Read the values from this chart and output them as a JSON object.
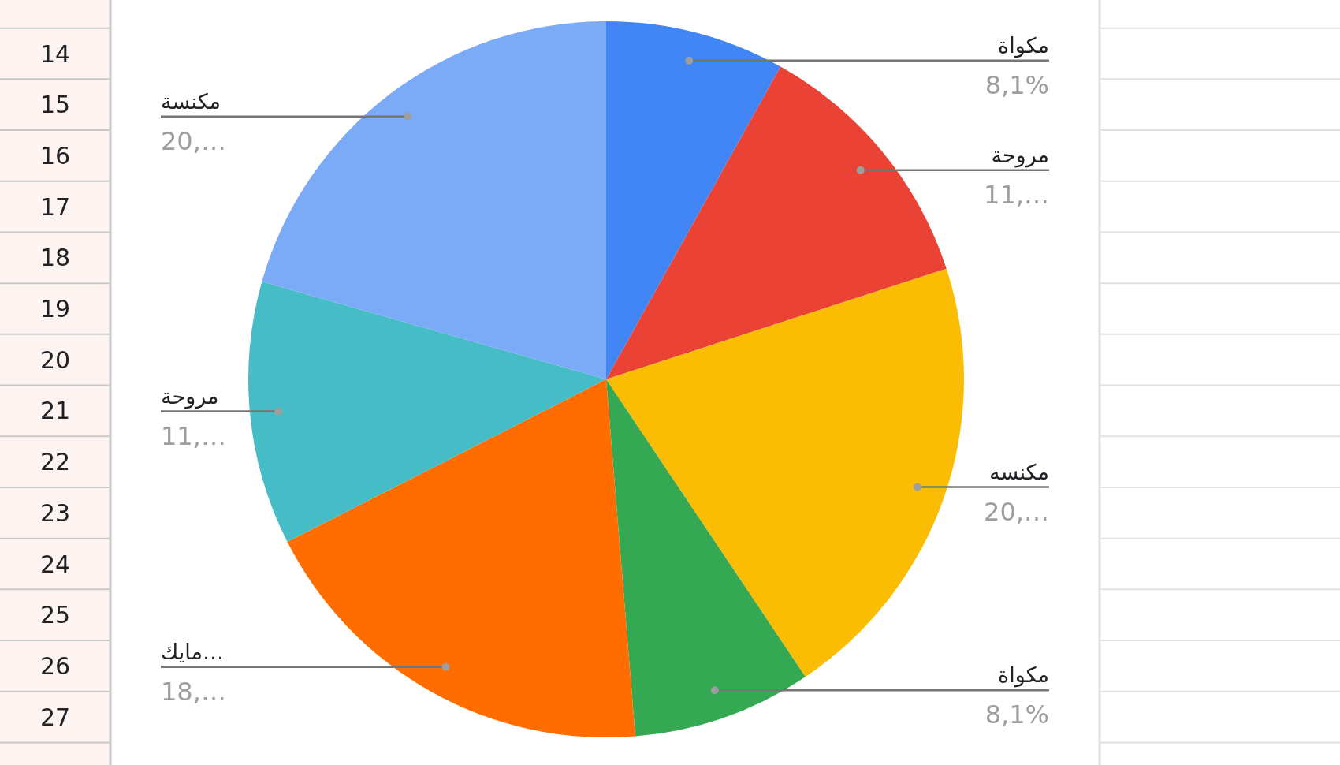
{
  "chart_data": {
    "type": "pie",
    "categories": [
      "مكواة",
      "مروحة",
      "مكنسه",
      "مكواة",
      "مايك…",
      "مروحة",
      "مكنسة"
    ],
    "values": [
      8.1,
      11.9,
      20.6,
      8.1,
      18.8,
      11.9,
      20.6
    ],
    "colors": [
      "#4285f4",
      "#ea4335",
      "#fbbc04",
      "#34a853",
      "#ff6d01",
      "#46bdc6",
      "#7baaf7"
    ],
    "value_labels": [
      "8,1%",
      "11,…",
      "20,…",
      "8,1%",
      "18,…",
      "11,…",
      "20,…"
    ],
    "annotations": [
      "14",
      "15",
      "16",
      "17",
      "18",
      "19",
      "20",
      "21",
      "22",
      "23",
      "24",
      "25",
      "26",
      "27"
    ]
  }
}
